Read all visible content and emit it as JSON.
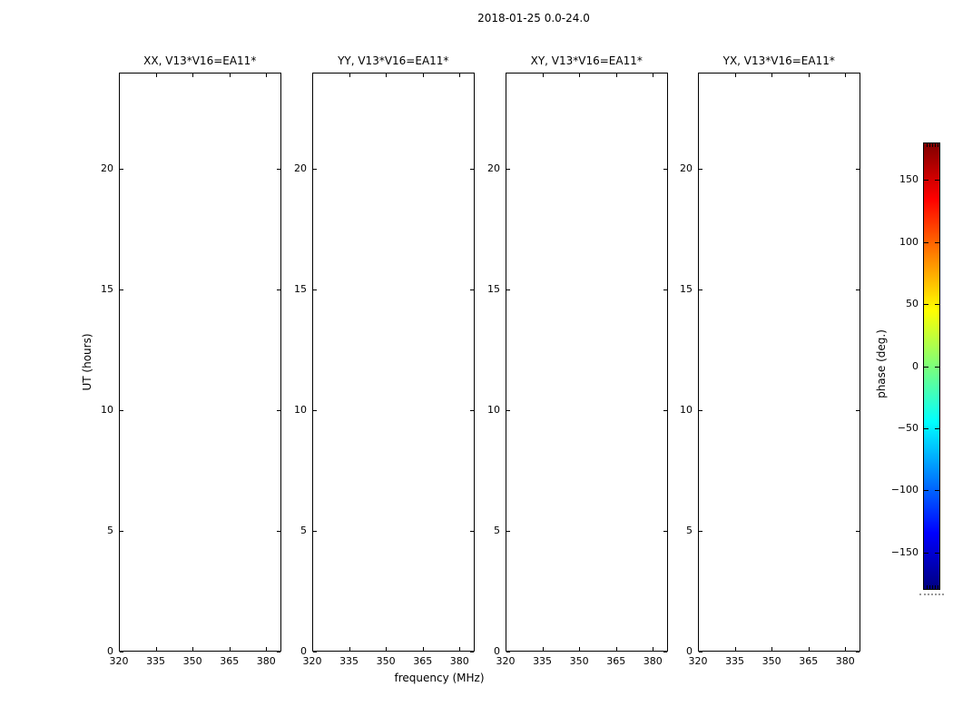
{
  "chart_data": {
    "type": "heatmap",
    "title": "2018-01-25 0.0-24.0",
    "xlabel": "frequency (MHz)",
    "ylabel": "UT (hours)",
    "panels": [
      {
        "title": "XX, V13*V16=EA11*"
      },
      {
        "title": "YY, V13*V16=EA11*"
      },
      {
        "title": "XY, V13*V16=EA11*"
      },
      {
        "title": "YX, V13*V16=EA11*"
      }
    ],
    "x_ticks": [
      320,
      335,
      350,
      365,
      380
    ],
    "y_ticks": [
      0,
      5,
      10,
      15,
      20
    ],
    "xlim": [
      320,
      386
    ],
    "ylim": [
      0,
      24
    ],
    "grid": false,
    "values": [],
    "background": "#ffffff",
    "axis_color": "#000000",
    "colorbar": {
      "label": "phase (deg.)",
      "ticks": [
        150,
        100,
        50,
        0,
        -50,
        -100,
        -150
      ],
      "lim": [
        -180,
        180
      ],
      "colormap": "jet",
      "stops": [
        {
          "pos": 0.0,
          "color": "#000080"
        },
        {
          "pos": 0.125,
          "color": "#0000ff"
        },
        {
          "pos": 0.25,
          "color": "#0080ff"
        },
        {
          "pos": 0.375,
          "color": "#00ffff"
        },
        {
          "pos": 0.5,
          "color": "#7dff7a"
        },
        {
          "pos": 0.625,
          "color": "#ffff00"
        },
        {
          "pos": 0.75,
          "color": "#ff8000"
        },
        {
          "pos": 0.875,
          "color": "#ff0000"
        },
        {
          "pos": 1.0,
          "color": "#800000"
        }
      ]
    }
  }
}
